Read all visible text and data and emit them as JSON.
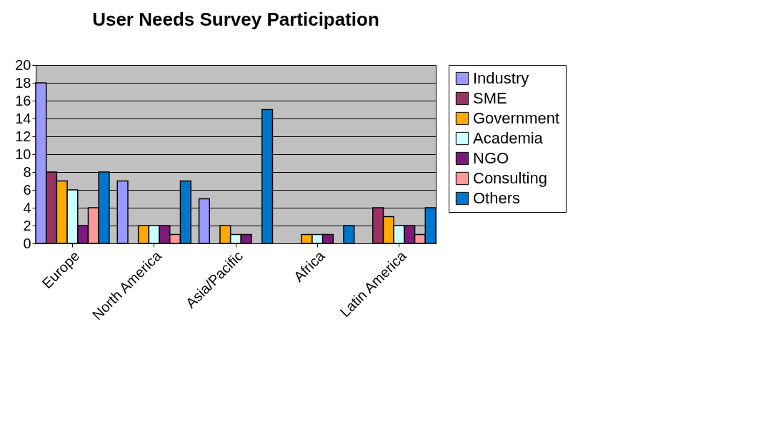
{
  "chart_data": {
    "type": "bar",
    "title": "User Needs Survey Participation",
    "categories": [
      "Europe",
      "North America",
      "Asia/Pacific",
      "Africa",
      "Latin America"
    ],
    "series": [
      {
        "name": "Industry",
        "color": "#9999ff",
        "values": [
          18,
          7,
          5,
          0,
          0
        ]
      },
      {
        "name": "SME",
        "color": "#993366",
        "values": [
          8,
          0,
          0,
          0,
          4
        ]
      },
      {
        "name": "Government",
        "color": "#ffaa00",
        "values": [
          7,
          2,
          2,
          1,
          3
        ]
      },
      {
        "name": "Academia",
        "color": "#ccffff",
        "values": [
          6,
          2,
          1,
          1,
          2
        ]
      },
      {
        "name": "NGO",
        "color": "#7a1a7a",
        "values": [
          2,
          2,
          1,
          1,
          2
        ]
      },
      {
        "name": "Consulting",
        "color": "#ff9999",
        "values": [
          4,
          1,
          0,
          0,
          1
        ]
      },
      {
        "name": "Others",
        "color": "#0077cc",
        "values": [
          8,
          7,
          15,
          2,
          4
        ]
      }
    ],
    "ylim": [
      0,
      20
    ],
    "yticks": [
      0,
      2,
      4,
      6,
      8,
      10,
      12,
      14,
      16,
      18,
      20
    ],
    "grid": "y",
    "legend": "right"
  }
}
